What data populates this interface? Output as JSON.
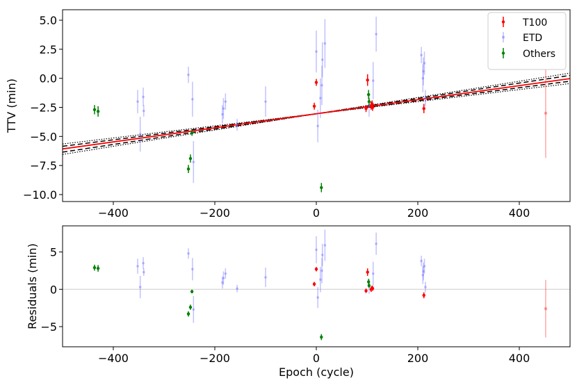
{
  "chart_data": [
    {
      "type": "scatter",
      "panel": "top",
      "xlabel": "",
      "ylabel": "TTV (min)",
      "xlim": [
        -500,
        500
      ],
      "ylim": [
        -10.6,
        5.9
      ],
      "xticks": [
        -400,
        -200,
        0,
        200,
        400
      ],
      "xtick_labels": [
        "−400",
        "−200",
        "0",
        "200",
        "400"
      ],
      "yticks": [
        5.0,
        2.5,
        0.0,
        -2.5,
        -5.0,
        -7.5,
        -10.0
      ],
      "ytick_labels": [
        "5.0",
        "2.5",
        "0.0",
        "−2.5",
        "−5.0",
        "−7.5",
        "−10.0"
      ],
      "legend": {
        "placement": "top-right",
        "entries": [
          "T100",
          "ETD",
          "Others"
        ]
      },
      "fit": {
        "best": {
          "intercept": -3.05,
          "slope": 0.00605,
          "color": "#ff0000"
        },
        "sigma1": {
          "intercept": -3.05,
          "slope_low": 0.0056,
          "slope_high": 0.0066,
          "color": "#000000",
          "style": "dashed"
        },
        "sigma3": {
          "intercept": -3.05,
          "slope_low": 0.0052,
          "slope_high": 0.007,
          "color": "#000000",
          "style": "dotted"
        }
      },
      "series": [
        {
          "name": "T100",
          "color": "#ff0000",
          "points": [
            {
              "x": -4,
              "y": -2.4,
              "err": 0.3
            },
            {
              "x": 0,
              "y": -0.35,
              "err": 0.3
            },
            {
              "x": 101,
              "y": -0.15,
              "err": 0.5
            },
            {
              "x": 98,
              "y": -2.6,
              "err": 0.3
            },
            {
              "x": 108,
              "y": -2.35,
              "err": 0.35
            },
            {
              "x": 110,
              "y": -2.2,
              "err": 0.3
            },
            {
              "x": 111,
              "y": -2.5,
              "err": 0.3
            },
            {
              "x": 212,
              "y": -2.6,
              "err": 0.4
            },
            {
              "x": 452,
              "y": -3.0,
              "err": 3.85,
              "faint": true
            }
          ]
        },
        {
          "name": "ETD",
          "color": "#6666ff",
          "points": [
            {
              "x": -352,
              "y": -2.0,
              "err": 1.0
            },
            {
              "x": -347,
              "y": -4.8,
              "err": 1.5
            },
            {
              "x": -341,
              "y": -1.6,
              "err": 0.8
            },
            {
              "x": -340,
              "y": -2.8,
              "err": 0.5
            },
            {
              "x": -252,
              "y": 0.3,
              "err": 0.7
            },
            {
              "x": -244,
              "y": -1.8,
              "err": 1.5
            },
            {
              "x": -242,
              "y": -7.2,
              "err": 1.8
            },
            {
              "x": -185,
              "y": -3.1,
              "err": 0.8
            },
            {
              "x": -183,
              "y": -2.6,
              "err": 0.9
            },
            {
              "x": -179,
              "y": -2.0,
              "err": 0.7
            },
            {
              "x": -156,
              "y": -4.0,
              "err": 0.5
            },
            {
              "x": -100,
              "y": -2.0,
              "err": 1.3
            },
            {
              "x": 0,
              "y": 2.3,
              "err": 1.8
            },
            {
              "x": 3,
              "y": -4.1,
              "err": 1.4
            },
            {
              "x": 8,
              "y": -1.7,
              "err": 1.7
            },
            {
              "x": 11,
              "y": -0.6,
              "err": 1.7
            },
            {
              "x": 12,
              "y": 1.6,
              "err": 1.5
            },
            {
              "x": 17,
              "y": 3.0,
              "err": 2.1
            },
            {
              "x": 104,
              "y": -2.3,
              "err": 1.0
            },
            {
              "x": 112,
              "y": -0.2,
              "err": 1.6
            },
            {
              "x": 118,
              "y": 3.8,
              "err": 1.5
            },
            {
              "x": 207,
              "y": 2.0,
              "err": 0.7
            },
            {
              "x": 210,
              "y": 0.0,
              "err": 1.2
            },
            {
              "x": 211,
              "y": 0.6,
              "err": 1.2
            },
            {
              "x": 213,
              "y": 1.3,
              "err": 1.0
            },
            {
              "x": 215,
              "y": -1.7,
              "err": 0.7
            }
          ]
        },
        {
          "name": "Others",
          "color": "#008000",
          "points": [
            {
              "x": -437,
              "y": -2.7,
              "err": 0.4
            },
            {
              "x": -430,
              "y": -2.85,
              "err": 0.45
            },
            {
              "x": -252,
              "y": -7.8,
              "err": 0.35
            },
            {
              "x": -248,
              "y": -6.9,
              "err": 0.35
            },
            {
              "x": -245,
              "y": -4.7,
              "err": 0.25
            },
            {
              "x": 10,
              "y": -9.4,
              "err": 0.4
            },
            {
              "x": 103,
              "y": -1.4,
              "err": 0.4
            },
            {
              "x": 104,
              "y": -2.0,
              "err": 0.3
            }
          ]
        }
      ]
    },
    {
      "type": "scatter",
      "panel": "bottom",
      "xlabel": "Epoch (cycle)",
      "ylabel": "Residuals (min)",
      "xlim": [
        -500,
        500
      ],
      "ylim": [
        -7.7,
        8.5
      ],
      "xticks": [
        -400,
        -200,
        0,
        200,
        400
      ],
      "xtick_labels": [
        "−400",
        "−200",
        "0",
        "200",
        "400"
      ],
      "yticks": [
        5,
        0,
        -5
      ],
      "ytick_labels": [
        "5",
        "0",
        "−5"
      ],
      "reference_line": {
        "y": 0,
        "color": "#cccccc"
      },
      "series": [
        {
          "name": "T100",
          "color": "#ff0000",
          "points": [
            {
              "x": -4,
              "y": 0.7,
              "err": 0.3
            },
            {
              "x": 0,
              "y": 2.7,
              "err": 0.3
            },
            {
              "x": 101,
              "y": 2.3,
              "err": 0.5
            },
            {
              "x": 98,
              "y": -0.2,
              "err": 0.3
            },
            {
              "x": 108,
              "y": 0.0,
              "err": 0.35
            },
            {
              "x": 110,
              "y": 0.2,
              "err": 0.3
            },
            {
              "x": 111,
              "y": 0.1,
              "err": 0.3
            },
            {
              "x": 212,
              "y": -0.8,
              "err": 0.4
            },
            {
              "x": 452,
              "y": -2.6,
              "err": 3.85,
              "faint": true
            }
          ]
        },
        {
          "name": "ETD",
          "color": "#6666ff",
          "points": [
            {
              "x": -352,
              "y": 3.1,
              "err": 1.0
            },
            {
              "x": -347,
              "y": 0.3,
              "err": 1.5
            },
            {
              "x": -341,
              "y": 3.5,
              "err": 0.8
            },
            {
              "x": -340,
              "y": 2.3,
              "err": 0.5
            },
            {
              "x": -252,
              "y": 4.8,
              "err": 0.7
            },
            {
              "x": -244,
              "y": 2.7,
              "err": 1.5
            },
            {
              "x": -242,
              "y": -2.7,
              "err": 1.8
            },
            {
              "x": -185,
              "y": 0.9,
              "err": 0.8
            },
            {
              "x": -183,
              "y": 1.5,
              "err": 0.9
            },
            {
              "x": -179,
              "y": 2.1,
              "err": 0.7
            },
            {
              "x": -156,
              "y": 0.1,
              "err": 0.5
            },
            {
              "x": -100,
              "y": 1.6,
              "err": 1.3
            },
            {
              "x": 0,
              "y": 5.3,
              "err": 1.8
            },
            {
              "x": 3,
              "y": -1.1,
              "err": 1.4
            },
            {
              "x": 8,
              "y": 1.3,
              "err": 1.7
            },
            {
              "x": 11,
              "y": 2.5,
              "err": 1.7
            },
            {
              "x": 12,
              "y": 4.6,
              "err": 1.5
            },
            {
              "x": 17,
              "y": 5.9,
              "err": 2.1
            },
            {
              "x": 104,
              "y": 0.4,
              "err": 1.0
            },
            {
              "x": 112,
              "y": 2.1,
              "err": 1.6
            },
            {
              "x": 118,
              "y": 6.1,
              "err": 1.5
            },
            {
              "x": 207,
              "y": 3.8,
              "err": 0.7
            },
            {
              "x": 210,
              "y": 1.9,
              "err": 1.2
            },
            {
              "x": 211,
              "y": 2.4,
              "err": 1.2
            },
            {
              "x": 213,
              "y": 3.1,
              "err": 1.0
            },
            {
              "x": 215,
              "y": 0.3,
              "err": 0.7
            }
          ]
        },
        {
          "name": "Others",
          "color": "#008000",
          "points": [
            {
              "x": -437,
              "y": 2.9,
              "err": 0.4
            },
            {
              "x": -430,
              "y": 2.8,
              "err": 0.45
            },
            {
              "x": -252,
              "y": -3.3,
              "err": 0.35
            },
            {
              "x": -248,
              "y": -2.4,
              "err": 0.35
            },
            {
              "x": -245,
              "y": -0.3,
              "err": 0.25
            },
            {
              "x": 10,
              "y": -6.4,
              "err": 0.4
            },
            {
              "x": 103,
              "y": 1.0,
              "err": 0.4
            },
            {
              "x": 104,
              "y": 0.5,
              "err": 0.3
            }
          ]
        }
      ]
    }
  ]
}
